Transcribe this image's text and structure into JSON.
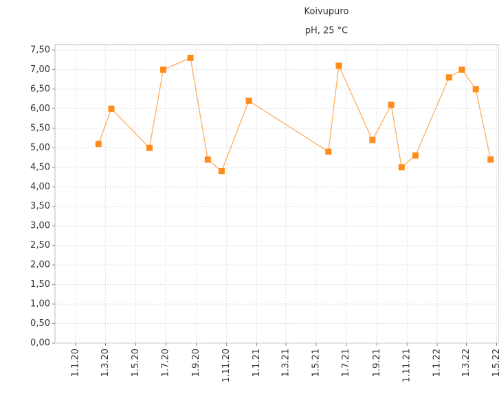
{
  "chart_data": {
    "type": "line",
    "title": "Koivupuro",
    "subtitle": "pH, 25 °C",
    "x": [
      "2020-02-16",
      "2020-03-13",
      "2020-05-29",
      "2020-06-26",
      "2020-08-20",
      "2020-09-24",
      "2020-10-22",
      "2020-12-16",
      "2021-05-26",
      "2021-06-16",
      "2021-08-23",
      "2021-09-30",
      "2021-10-21",
      "2021-11-18",
      "2022-01-25",
      "2022-02-20",
      "2022-03-20",
      "2022-04-19"
    ],
    "series": [
      {
        "name": "pH",
        "color": "#ff8c1a",
        "values": [
          5.1,
          6.0,
          5.0,
          7.0,
          7.3,
          4.7,
          4.4,
          6.2,
          4.9,
          7.1,
          5.2,
          6.1,
          4.5,
          4.8,
          6.8,
          7.0,
          6.5,
          4.7
        ]
      }
    ],
    "xlim": [
      "2019-11-20",
      "2022-05-06"
    ],
    "xticks": [
      {
        "value": "2020-01-01",
        "label": "1.1.20"
      },
      {
        "value": "2020-03-01",
        "label": "1.3.20"
      },
      {
        "value": "2020-05-01",
        "label": "1.5.20"
      },
      {
        "value": "2020-07-01",
        "label": "1.7.20"
      },
      {
        "value": "2020-09-01",
        "label": "1.9.20"
      },
      {
        "value": "2020-11-01",
        "label": "1.11.20"
      },
      {
        "value": "2021-01-01",
        "label": "1.1.21"
      },
      {
        "value": "2021-03-01",
        "label": "1.3.21"
      },
      {
        "value": "2021-05-01",
        "label": "1.5.21"
      },
      {
        "value": "2021-07-01",
        "label": "1.7.21"
      },
      {
        "value": "2021-09-01",
        "label": "1.9.21"
      },
      {
        "value": "2021-11-01",
        "label": "1.11.21"
      },
      {
        "value": "2022-01-01",
        "label": "1.1.22"
      },
      {
        "value": "2022-03-01",
        "label": "1.3.22"
      },
      {
        "value": "2022-05-01",
        "label": "1.5.22"
      }
    ],
    "ylim": [
      0,
      7.5
    ],
    "yticks": [
      {
        "value": 0,
        "label": "0,00"
      },
      {
        "value": 0.5,
        "label": "0,50"
      },
      {
        "value": 1,
        "label": "1,00"
      },
      {
        "value": 1.5,
        "label": "1,50"
      },
      {
        "value": 2,
        "label": "2,00"
      },
      {
        "value": 2.5,
        "label": "2,50"
      },
      {
        "value": 3,
        "label": "3,00"
      },
      {
        "value": 3.5,
        "label": "3,50"
      },
      {
        "value": 4,
        "label": "4,00"
      },
      {
        "value": 4.5,
        "label": "4,50"
      },
      {
        "value": 5,
        "label": "5,00"
      },
      {
        "value": 5.5,
        "label": "5,50"
      },
      {
        "value": 6,
        "label": "6,00"
      },
      {
        "value": 6.5,
        "label": "6,50"
      },
      {
        "value": 7,
        "label": "7,00"
      },
      {
        "value": 7.5,
        "label": "7,50"
      }
    ],
    "grid": true
  }
}
